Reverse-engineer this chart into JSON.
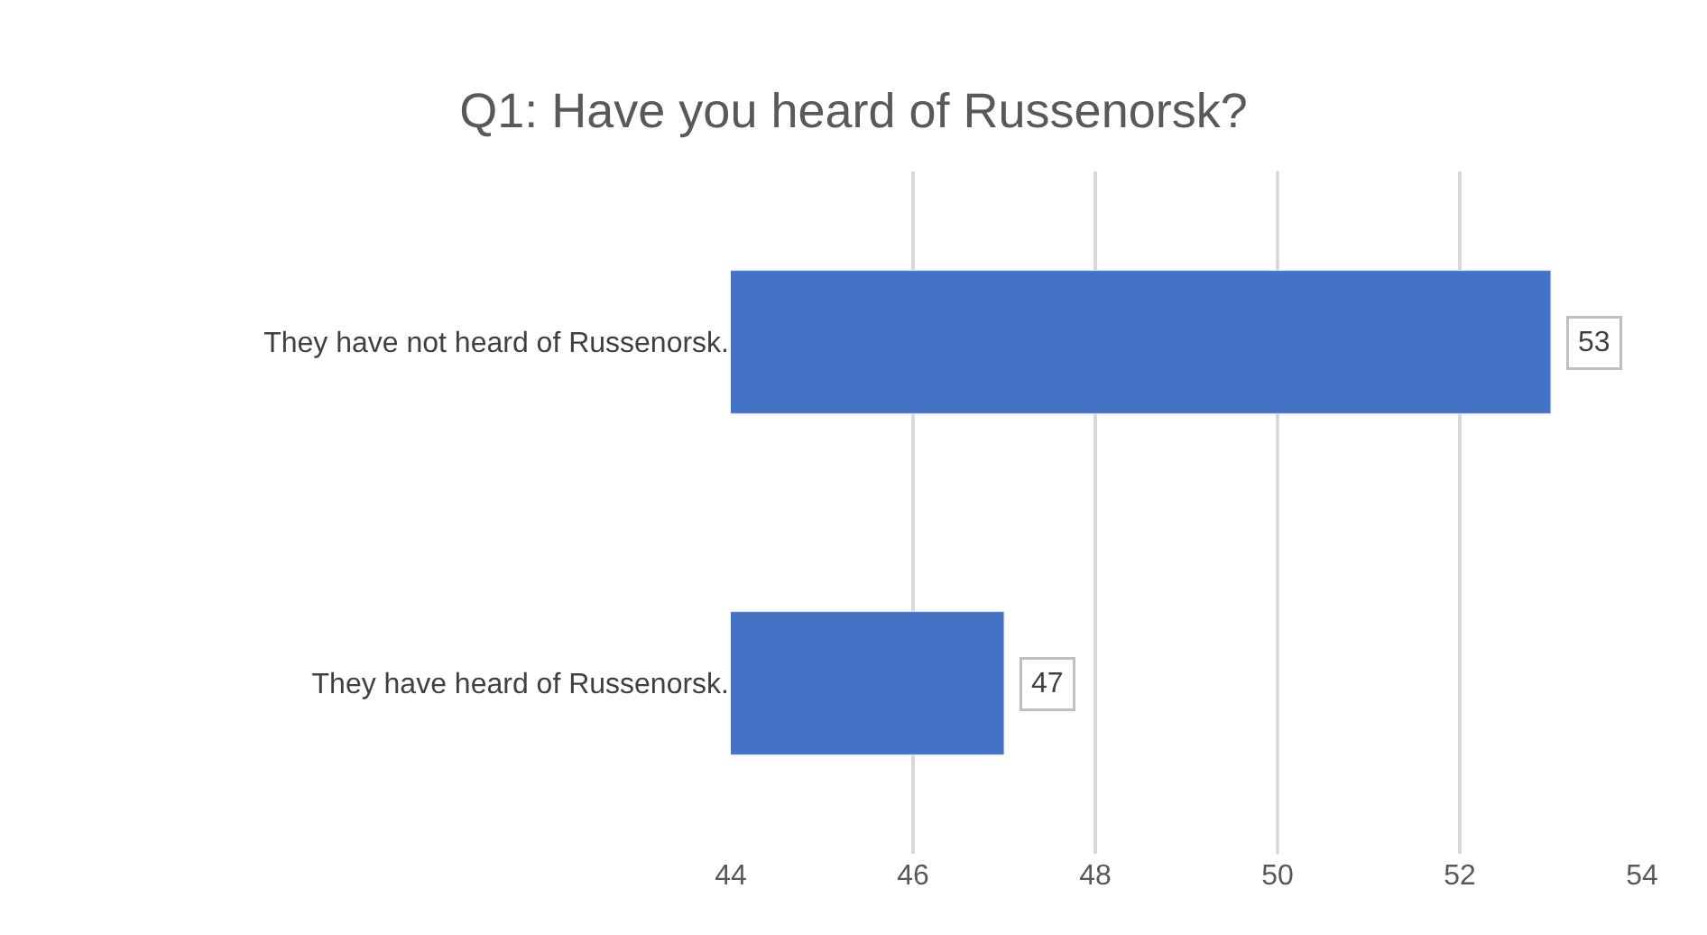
{
  "chart_data": {
    "type": "bar",
    "orientation": "horizontal",
    "title": "Q1: Have you heard of Russenorsk?",
    "categories": [
      "They have not heard of Russenorsk.",
      "They have heard of Russenorsk."
    ],
    "values": [
      53,
      47
    ],
    "color": "#4472c4",
    "xlim": [
      44,
      54
    ],
    "xticks": [
      44,
      46,
      48,
      50,
      52,
      54
    ],
    "grid": "x",
    "data_labels": true,
    "legend": false
  }
}
